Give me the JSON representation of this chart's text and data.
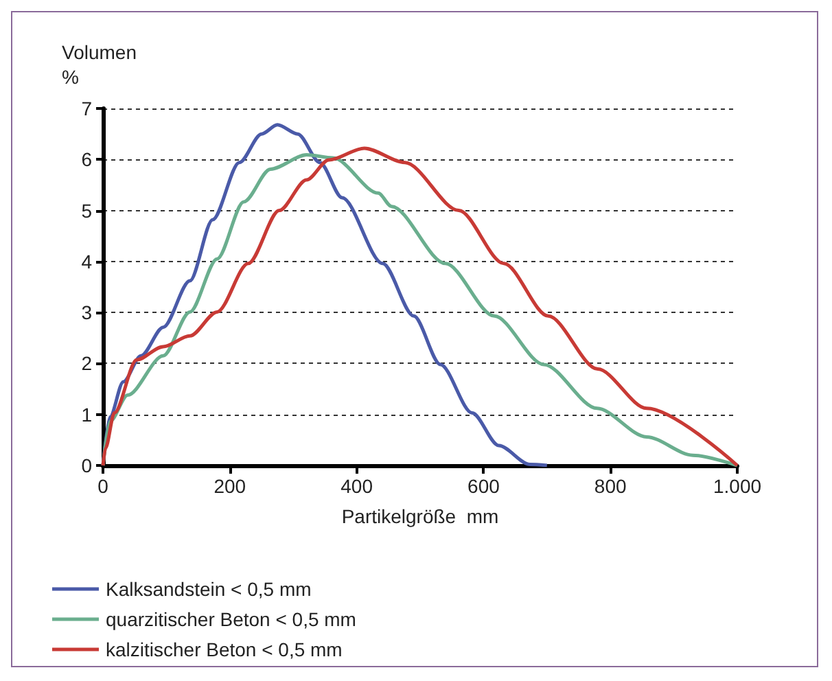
{
  "chart_data": {
    "type": "line",
    "xlabel": "Partikelgröße  mm",
    "ylabel": "Volumen\n%",
    "xlim": [
      0,
      1000
    ],
    "xticks": [
      0,
      200,
      400,
      600,
      800,
      {
        "value": 1000,
        "label": "1.000"
      }
    ],
    "ylim": [
      0,
      7
    ],
    "yticks": [
      0,
      1,
      2,
      3,
      4,
      5,
      6,
      7
    ],
    "grid": "y",
    "legend": "bottom",
    "marker": "none",
    "line_style": "solid",
    "series": [
      {
        "name": "Kalksandstein < 0,5 mm",
        "color": "#4a5aa8",
        "x": [
          0,
          11,
          32,
          60,
          95,
          137,
          173,
          215,
          250,
          275,
          307,
          342,
          377,
          441,
          490,
          532,
          582,
          624,
          673,
          700
        ],
        "values": [
          0,
          0.95,
          1.64,
          2.15,
          2.71,
          3.62,
          4.82,
          5.94,
          6.5,
          6.68,
          6.5,
          5.94,
          5.25,
          3.96,
          2.93,
          1.98,
          1.03,
          0.39,
          0.02,
          0
        ]
      },
      {
        "name": "quarzitischer Beton < 0,5 mm",
        "color": "#6aae8e",
        "x": [
          0,
          11,
          39,
          95,
          137,
          180,
          222,
          264,
          321,
          363,
          434,
          455,
          540,
          617,
          695,
          779,
          857,
          930,
          1000
        ],
        "values": [
          0,
          0.86,
          1.38,
          2.15,
          3.01,
          4.05,
          5.17,
          5.81,
          6.09,
          6.03,
          5.34,
          5.08,
          3.96,
          2.93,
          1.98,
          1.12,
          0.56,
          0.2,
          0
        ]
      },
      {
        "name": "kalzitischer Beton < 0,5 mm",
        "color": "#c83a35",
        "x": [
          0,
          4,
          18,
          53,
          95,
          137,
          180,
          229,
          278,
          321,
          356,
          412,
          476,
          561,
          632,
          702,
          780,
          857,
          1000
        ],
        "values": [
          0,
          0.34,
          1.03,
          2.07,
          2.33,
          2.54,
          3.01,
          3.96,
          5.0,
          5.6,
          5.99,
          6.22,
          5.94,
          5.0,
          3.96,
          2.93,
          1.89,
          1.12,
          0
        ]
      }
    ]
  }
}
